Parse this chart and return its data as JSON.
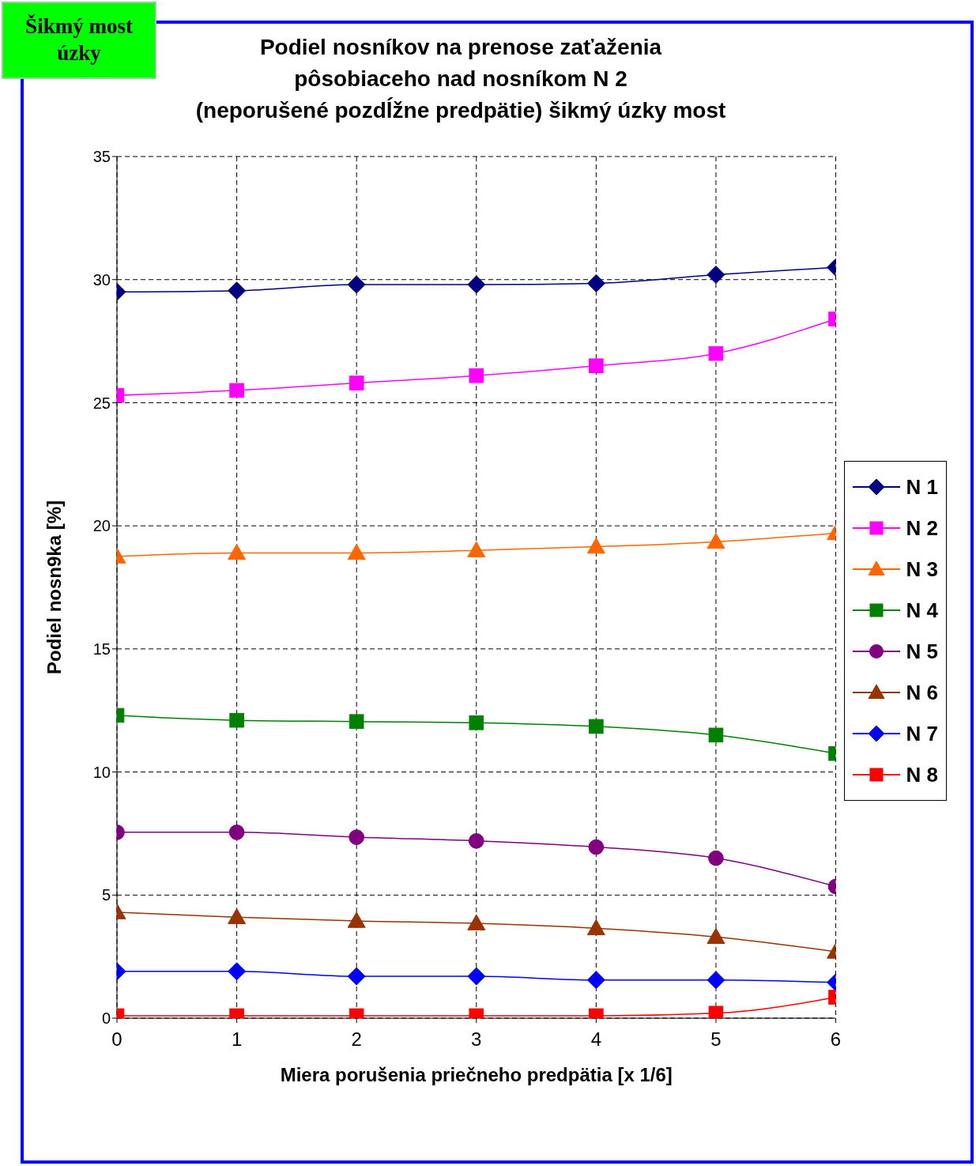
{
  "chart_data": {
    "type": "line",
    "title": "Podiel nosníkov na prenose zaťaženia\npôsobiaceho nad nosníkom N 2\n(neporušené pozdĺžne predpätie) šikmý úzky most",
    "xlabel": "Miera porušenia priečneho predpätia [x 1/6]",
    "ylabel": "Podiel nosn9ka [%]",
    "annotations": [
      "Šikmý most\núzky"
    ],
    "x": [
      0,
      1,
      2,
      3,
      4,
      5,
      6
    ],
    "xlim": [
      0,
      6
    ],
    "xticks": [
      0,
      1,
      2,
      3,
      4,
      5,
      6
    ],
    "ylim": [
      0,
      35
    ],
    "yticks": [
      0,
      5,
      10,
      15,
      20,
      25,
      30,
      35
    ],
    "grid": true,
    "legend": "right",
    "line_style": "solid",
    "series": [
      {
        "name": "N 1",
        "color": "#000080",
        "marker": "diamond",
        "values": [
          29.5,
          29.55,
          29.8,
          29.8,
          29.85,
          30.2,
          30.5
        ]
      },
      {
        "name": "N 2",
        "color": "#ff00ff",
        "marker": "square",
        "values": [
          25.3,
          25.5,
          25.8,
          26.1,
          26.5,
          27.0,
          28.4
        ]
      },
      {
        "name": "N 3",
        "color": "#ff6600",
        "marker": "triangle",
        "values": [
          18.75,
          18.9,
          18.9,
          19.0,
          19.15,
          19.35,
          19.7
        ]
      },
      {
        "name": "N 4",
        "color": "#008000",
        "marker": "square",
        "values": [
          12.3,
          12.1,
          12.05,
          12.0,
          11.85,
          11.5,
          10.75
        ]
      },
      {
        "name": "N 5",
        "color": "#800080",
        "marker": "circle",
        "values": [
          7.55,
          7.55,
          7.35,
          7.2,
          6.95,
          6.5,
          5.35
        ]
      },
      {
        "name": "N 6",
        "color": "#993300",
        "marker": "triangle",
        "values": [
          4.3,
          4.1,
          3.95,
          3.85,
          3.65,
          3.3,
          2.7
        ]
      },
      {
        "name": "N 7",
        "color": "#0000ff",
        "marker": "diamond",
        "values": [
          1.9,
          1.9,
          1.7,
          1.7,
          1.55,
          1.55,
          1.45
        ]
      },
      {
        "name": "N 8",
        "color": "#ff0000",
        "marker": "square",
        "values": [
          0.1,
          0.1,
          0.1,
          0.1,
          0.1,
          0.2,
          0.85
        ]
      }
    ]
  }
}
